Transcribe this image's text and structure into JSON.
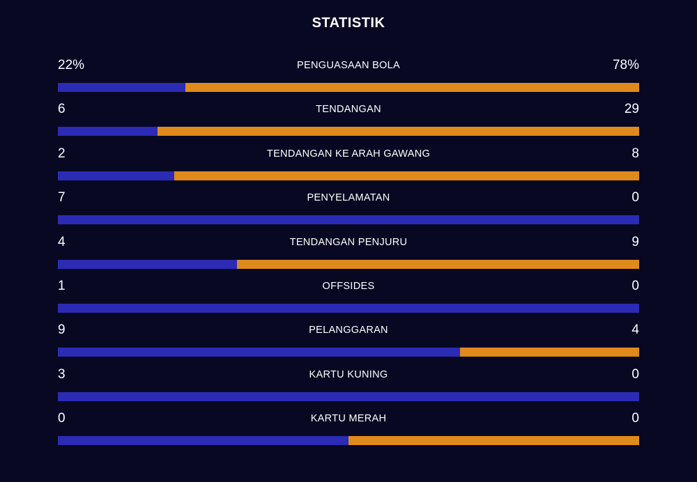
{
  "title": "STATISTIK",
  "colors": {
    "background": "#080823",
    "home": "#2b2bb5",
    "away": "#e08a1c"
  },
  "stats": [
    {
      "label": "PENGUASAAN BOLA",
      "home": "22%",
      "away": "78%",
      "home_share": 0.22
    },
    {
      "label": "TENDANGAN",
      "home": "6",
      "away": "29",
      "home_share": 0.171
    },
    {
      "label": "TENDANGAN KE ARAH GAWANG",
      "home": "2",
      "away": "8",
      "home_share": 0.2
    },
    {
      "label": "PENYELAMATAN",
      "home": "7",
      "away": "0",
      "home_share": 1.0
    },
    {
      "label": "TENDANGAN PENJURU",
      "home": "4",
      "away": "9",
      "home_share": 0.308
    },
    {
      "label": "OFFSIDES",
      "home": "1",
      "away": "0",
      "home_share": 1.0
    },
    {
      "label": "PELANGGARAN",
      "home": "9",
      "away": "4",
      "home_share": 0.692
    },
    {
      "label": "KARTU KUNING",
      "home": "3",
      "away": "0",
      "home_share": 1.0
    },
    {
      "label": "KARTU MERAH",
      "home": "0",
      "away": "0",
      "home_share": 0.5
    }
  ]
}
